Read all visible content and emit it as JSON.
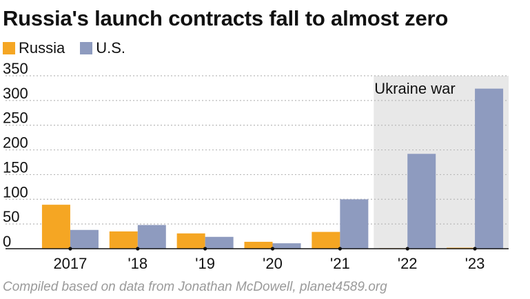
{
  "title": "Russia's launch contracts fall to almost zero",
  "source": "Compiled based on data from Jonathan McDowell, planet4589.org",
  "chart_data": {
    "type": "bar",
    "title": "Russia's launch contracts fall to almost zero",
    "categories": [
      "2017",
      "'18",
      "'19",
      "'20",
      "'21",
      "'22",
      "'23"
    ],
    "series": [
      {
        "name": "Russia",
        "color": "#f5a623",
        "values": [
          89,
          35,
          31,
          14,
          34,
          1,
          2
        ]
      },
      {
        "name": "U.S.",
        "color": "#8e9bbf",
        "values": [
          38,
          48,
          24,
          11,
          100,
          192,
          324
        ]
      }
    ],
    "yticks": [
      0,
      50,
      100,
      150,
      200,
      250,
      300,
      350
    ],
    "ylim": [
      0,
      350
    ],
    "grid": true,
    "legend_position": "top-left",
    "xlabel": "",
    "ylabel": "",
    "annotation": {
      "label": "Ukraine war",
      "categories": [
        "'22",
        "'23"
      ],
      "color": "#e8e8e8"
    }
  }
}
